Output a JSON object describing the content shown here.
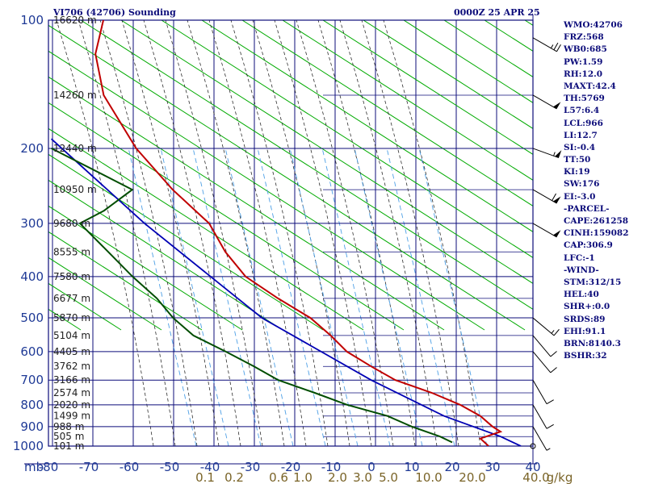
{
  "header": {
    "station": "VI706 (42706) Sounding",
    "datetime": "0000Z 25 APR 25"
  },
  "indices": [
    "WMO:42706",
    "FRZ:568",
    "WB0:685",
    "PW:1.59",
    "RH:12.0",
    "MAXT:42.4",
    "TH:5769",
    "L57:6.4",
    "LCL:966",
    "LI:12.7",
    "SI:-0.4",
    "TT:50",
    "KI:19",
    "SW:176",
    "EI:-3.0",
    "-PARCEL-",
    "CAPE:261258",
    "CINH:159082",
    "CAP:306.9",
    "LFC:-1",
    "-WIND-",
    "STM:312/15",
    "HEL:40",
    "SHR+:0.0",
    "SRDS:89",
    "EHI:91.1",
    "BRN:8140.3",
    "BSHR:32"
  ],
  "colors": {
    "frame": "#0c0c7a",
    "isobar": "#0c0c7a",
    "isotherm": "#0c0c7a",
    "dry_adiabat": "#00aa00",
    "moist_adiabat": "#2f2f2f",
    "mixing_ratio": "#4ea0e6",
    "temperature": "#c00000",
    "dewpoint": "#004d00",
    "parcel": "#0000b4",
    "pressure_label": "#1f3a96",
    "height_label": "#202020",
    "mixing_label": "#7a6428"
  },
  "chart_data": {
    "type": "skew-t",
    "pressure_unit": "mb",
    "temperature_unit": "°C",
    "mixing_ratio_unit": "g/kg",
    "pressure_range": [
      1000,
      100
    ],
    "temperature_range": [
      -80,
      40
    ],
    "pressure_ticks": [
      100,
      200,
      300,
      400,
      500,
      600,
      700,
      800,
      900,
      1000
    ],
    "temperature_ticks": [
      -80,
      -70,
      -60,
      -50,
      -40,
      -30,
      -20,
      -10,
      0,
      10,
      20,
      30,
      40
    ],
    "minor_isobars": [
      150,
      250,
      350,
      450,
      550,
      650,
      750,
      850,
      950
    ],
    "heights": [
      {
        "p": 100,
        "label": "16620 m"
      },
      {
        "p": 150,
        "label": "14260 m"
      },
      {
        "p": 200,
        "label": "12440 m"
      },
      {
        "p": 250,
        "label": "10950 m"
      },
      {
        "p": 300,
        "label": "9680 m"
      },
      {
        "p": 350,
        "label": "8555 m"
      },
      {
        "p": 400,
        "label": "7580 m"
      },
      {
        "p": 450,
        "label": "6677 m"
      },
      {
        "p": 500,
        "label": "5870 m"
      },
      {
        "p": 550,
        "label": "5104 m"
      },
      {
        "p": 600,
        "label": "4405 m"
      },
      {
        "p": 650,
        "label": "3762 m"
      },
      {
        "p": 700,
        "label": "3166 m"
      },
      {
        "p": 750,
        "label": "2574 m"
      },
      {
        "p": 800,
        "label": "2020 m"
      },
      {
        "p": 850,
        "label": "1499 m"
      },
      {
        "p": 900,
        "label": "988 m"
      },
      {
        "p": 950,
        "label": "505 m"
      },
      {
        "p": 1000,
        "label": "101 m"
      }
    ],
    "mixing_ratio_labels": [
      "0.1",
      "0.2",
      "0.6",
      "1.0",
      "2.0",
      "3.0",
      "5.0",
      "10.0",
      "20.0",
      "40.0",
      "g/kg"
    ],
    "mixing_ratio_values": [
      0.1,
      0.2,
      0.6,
      1.0,
      2.0,
      3.0,
      5.0,
      10.0,
      20.0,
      40.0
    ],
    "temperature": [
      {
        "p": 100,
        "t": -67
      },
      {
        "p": 120,
        "t": -69
      },
      {
        "p": 150,
        "t": -67
      },
      {
        "p": 200,
        "t": -59
      },
      {
        "p": 250,
        "t": -50
      },
      {
        "p": 300,
        "t": -41
      },
      {
        "p": 350,
        "t": -37
      },
      {
        "p": 400,
        "t": -32
      },
      {
        "p": 450,
        "t": -24
      },
      {
        "p": 500,
        "t": -16
      },
      {
        "p": 550,
        "t": -11
      },
      {
        "p": 600,
        "t": -7
      },
      {
        "p": 650,
        "t": -1
      },
      {
        "p": 700,
        "t": 5
      },
      {
        "p": 750,
        "t": 14
      },
      {
        "p": 800,
        "t": 21
      },
      {
        "p": 850,
        "t": 26
      },
      {
        "p": 900,
        "t": 29
      },
      {
        "p": 925,
        "t": 31
      },
      {
        "p": 960,
        "t": 26
      },
      {
        "p": 1000,
        "t": 28
      }
    ],
    "dewpoint": [
      {
        "p": 200,
        "t": -80
      },
      {
        "p": 250,
        "t": -60
      },
      {
        "p": 280,
        "t": -67
      },
      {
        "p": 300,
        "t": -73
      },
      {
        "p": 350,
        "t": -66
      },
      {
        "p": 400,
        "t": -60
      },
      {
        "p": 450,
        "t": -54
      },
      {
        "p": 500,
        "t": -50
      },
      {
        "p": 550,
        "t": -45
      },
      {
        "p": 600,
        "t": -37
      },
      {
        "p": 650,
        "t": -30
      },
      {
        "p": 700,
        "t": -24
      },
      {
        "p": 750,
        "t": -15
      },
      {
        "p": 800,
        "t": -7
      },
      {
        "p": 850,
        "t": 3
      },
      {
        "p": 900,
        "t": 9
      },
      {
        "p": 950,
        "t": 16
      },
      {
        "p": 980,
        "t": 19
      }
    ],
    "parcel": [
      {
        "p": 190,
        "t": -80
      },
      {
        "p": 300,
        "t": -57
      },
      {
        "p": 500,
        "t": -28
      },
      {
        "p": 700,
        "t": -1
      },
      {
        "p": 850,
        "t": 17
      },
      {
        "p": 950,
        "t": 31
      },
      {
        "p": 1000,
        "t": 36
      }
    ],
    "wind_barbs": [
      {
        "p": 110,
        "dir": 300,
        "spd": 25
      },
      {
        "p": 150,
        "dir": 300,
        "spd": 50
      },
      {
        "p": 200,
        "dir": 290,
        "spd": 55
      },
      {
        "p": 250,
        "dir": 300,
        "spd": 60
      },
      {
        "p": 300,
        "dir": 300,
        "spd": 50
      },
      {
        "p": 500,
        "dir": 310,
        "spd": 15
      },
      {
        "p": 550,
        "dir": 320,
        "spd": 10
      },
      {
        "p": 600,
        "dir": 320,
        "spd": 10
      },
      {
        "p": 700,
        "dir": 330,
        "spd": 10
      },
      {
        "p": 800,
        "dir": 330,
        "spd": 10
      },
      {
        "p": 900,
        "dir": 330,
        "spd": 5
      }
    ]
  }
}
